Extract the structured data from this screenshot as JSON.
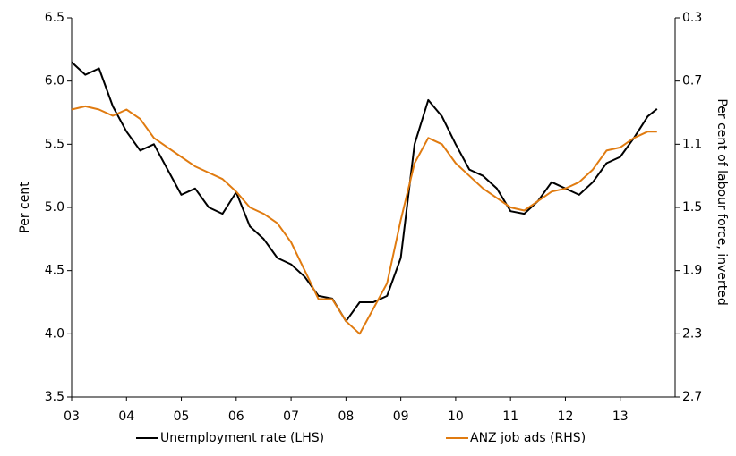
{
  "chart_data": {
    "type": "line",
    "y_label": "Per cent",
    "y2_label": "Per cent of labour force, inverted",
    "x": [
      3,
      3.25,
      3.5,
      3.75,
      4,
      4.25,
      4.5,
      4.75,
      5,
      5.25,
      5.5,
      5.75,
      6,
      6.25,
      6.5,
      6.75,
      7,
      7.25,
      7.5,
      7.75,
      8,
      8.25,
      8.5,
      8.75,
      9,
      9.25,
      9.5,
      9.75,
      10,
      10.25,
      10.5,
      10.75,
      11,
      11.25,
      11.5,
      11.75,
      12,
      12.25,
      12.5,
      12.75,
      13,
      13.25,
      13.5,
      13.67
    ],
    "series": [
      {
        "name": "Unemployment rate (LHS)",
        "color": "#000000",
        "axis": "y",
        "values": [
          6.15,
          6.05,
          6.1,
          5.8,
          5.6,
          5.45,
          5.5,
          5.3,
          5.1,
          5.15,
          5.0,
          4.95,
          5.12,
          4.85,
          4.75,
          4.6,
          4.55,
          4.45,
          4.3,
          4.28,
          4.1,
          4.25,
          4.25,
          4.3,
          4.6,
          5.5,
          5.85,
          5.72,
          5.5,
          5.3,
          5.25,
          5.15,
          4.97,
          4.95,
          5.05,
          5.2,
          5.15,
          5.1,
          5.2,
          5.35,
          5.4,
          5.55,
          5.72,
          5.78
        ]
      },
      {
        "name": "ANZ job ads (RHS)",
        "color": "#e07b10",
        "axis": "y2",
        "values": [
          0.88,
          0.86,
          0.88,
          0.92,
          0.88,
          0.94,
          1.06,
          1.12,
          1.18,
          1.24,
          1.28,
          1.32,
          1.4,
          1.5,
          1.54,
          1.6,
          1.72,
          1.9,
          2.08,
          2.08,
          2.22,
          2.3,
          2.14,
          1.98,
          1.58,
          1.22,
          1.06,
          1.1,
          1.22,
          1.3,
          1.38,
          1.44,
          1.5,
          1.52,
          1.46,
          1.4,
          1.38,
          1.34,
          1.26,
          1.14,
          1.12,
          1.06,
          1.02,
          1.02
        ]
      }
    ],
    "xlim": [
      3,
      14
    ],
    "xticks": [
      {
        "value": 3,
        "label": "03"
      },
      {
        "value": 4,
        "label": "04"
      },
      {
        "value": 5,
        "label": "05"
      },
      {
        "value": 6,
        "label": "06"
      },
      {
        "value": 7,
        "label": "07"
      },
      {
        "value": 8,
        "label": "08"
      },
      {
        "value": 9,
        "label": "09"
      },
      10,
      11,
      12,
      13
    ],
    "ylim": [
      3.5,
      6.5
    ],
    "yticks": [
      3.5,
      {
        "value": 4,
        "label": "4.0"
      },
      4.5,
      {
        "value": 5,
        "label": "5.0"
      },
      5.5,
      {
        "value": 6,
        "label": "6.0"
      },
      6.5
    ],
    "y2lim": [
      2.7,
      0.3
    ],
    "y2ticks": [
      0.3,
      0.7,
      1.1,
      1.5,
      1.9,
      2.3,
      2.7
    ],
    "grid": false,
    "legend": "bottom"
  }
}
